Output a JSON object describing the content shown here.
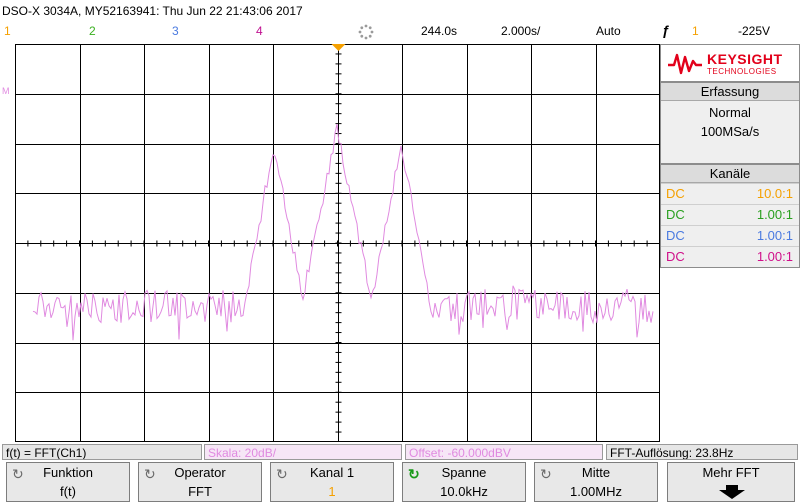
{
  "header": {
    "model_info": "DSO-X 3034A, MY52163941: Thu Jun 22 21:43:06 2017",
    "timebase_position": "244.0s",
    "timebase_scale": "2.000s/",
    "trigger_mode": "Auto",
    "trigger_source": "1",
    "trigger_level": "-225V",
    "channel_numbers": [
      {
        "label": "1",
        "color": "#f5a000"
      },
      {
        "label": "2",
        "color": "#3ab020"
      },
      {
        "label": "3",
        "color": "#4a7ae0"
      },
      {
        "label": "4",
        "color": "#c01090"
      }
    ]
  },
  "brand": {
    "name": "KEYSIGHT",
    "sub": "TECHNOLOGIES",
    "color": "#e2001a"
  },
  "acquisition": {
    "title": "Erfassung",
    "mode": "Normal",
    "rate": "100MSa/s"
  },
  "channels_panel": {
    "title": "Kanäle",
    "rows": [
      {
        "coupling": "DC",
        "ratio": "10.0:1",
        "color": "#f5a000"
      },
      {
        "coupling": "DC",
        "ratio": "1.00:1",
        "color": "#2aa020"
      },
      {
        "coupling": "DC",
        "ratio": "1.00:1",
        "color": "#4a7ae0"
      },
      {
        "coupling": "DC",
        "ratio": "1.00:1",
        "color": "#d0108a"
      }
    ]
  },
  "ground_marker": "M",
  "math_trace_color": "#e08ae0",
  "status_bar": {
    "function": "f(t) = FFT(Ch1)",
    "scale": "Skala: 20dB/",
    "offset": "Offset: -60.000dBV",
    "resolution": "FFT-Auflösung: 23.8Hz"
  },
  "softkeys": [
    {
      "label": "Funktion",
      "value": "f(t)",
      "active": false
    },
    {
      "label": "Operator",
      "value": "FFT",
      "active": false
    },
    {
      "label": "Kanal 1",
      "value": "1",
      "active": false
    },
    {
      "label": "Spanne",
      "value": "10.0kHz",
      "active": true
    },
    {
      "label": "Mitte",
      "value": "1.00MHz",
      "active": false
    },
    {
      "label": "Mehr FFT",
      "value": "",
      "active": false
    }
  ]
}
